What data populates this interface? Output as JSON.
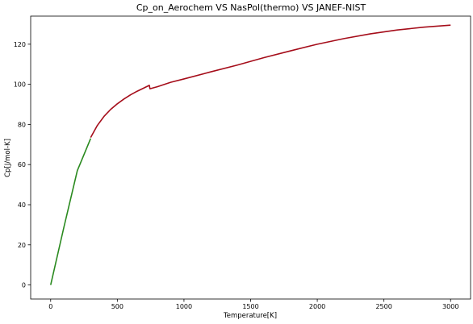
{
  "chart_data": {
    "type": "line",
    "title": "Cp_on_Aerochem VS NasPol(thermo) VS JANEF-NIST",
    "xlabel": "Temperature[K]",
    "ylabel": "Cp[J/mol-K]",
    "xlim": [
      -150,
      3150
    ],
    "ylim": [
      -7,
      134
    ],
    "x_ticks": [
      0,
      500,
      1000,
      1500,
      2000,
      2500,
      3000
    ],
    "y_ticks": [
      0,
      20,
      40,
      60,
      80,
      100,
      120
    ],
    "grid": false,
    "legend": "none",
    "series": [
      {
        "color": "#2a8a1f",
        "x": [
          0,
          100,
          200,
          250,
          300
        ],
        "y": [
          0,
          29,
          57,
          65,
          73
        ]
      },
      {
        "color": "#a50d1a",
        "x": [
          300,
          350,
          400,
          450,
          500,
          550,
          600,
          650,
          700,
          740,
          745,
          800,
          900,
          1000,
          1200,
          1400,
          1600,
          1800,
          2000,
          2200,
          2400,
          2600,
          2800,
          3000
        ],
        "y": [
          73.5,
          79.5,
          84.0,
          87.5,
          90.3,
          92.7,
          94.8,
          96.6,
          98.2,
          99.5,
          97.8,
          98.8,
          101.0,
          102.7,
          106.2,
          109.6,
          113.3,
          116.7,
          120.0,
          122.8,
          125.2,
          127.1,
          128.5,
          129.5
        ]
      }
    ]
  }
}
